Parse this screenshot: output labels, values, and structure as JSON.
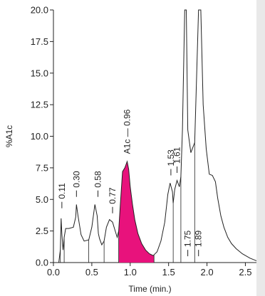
{
  "chart_data": {
    "type": "line",
    "title": "",
    "xlabel": "Time (min.)",
    "ylabel": "%A1c",
    "xlim": [
      0.0,
      2.7
    ],
    "ylim": [
      0.0,
      20.0
    ],
    "x_ticks": [
      "0.0",
      "0.5",
      "1.0",
      "1.5",
      "2.0",
      "2.5"
    ],
    "x_tick_values": [
      0.0,
      0.5,
      1.0,
      1.5,
      2.0,
      2.5
    ],
    "y_ticks": [
      "0.0",
      "2.5",
      "5.0",
      "7.5",
      "10.0",
      "12.5",
      "15.0",
      "17.5",
      "20.0"
    ],
    "y_tick_values": [
      0.0,
      2.5,
      5.0,
      7.5,
      10.0,
      12.5,
      15.0,
      17.5,
      20.0
    ],
    "highlight_color": "#e8127c",
    "highlighted_peak": {
      "label": "A1c",
      "range": [
        0.85,
        1.31
      ]
    },
    "series": [
      {
        "x": [
          0.07,
          0.09,
          0.1,
          0.11,
          0.125,
          0.14,
          0.16,
          0.2,
          0.26,
          0.29,
          0.3,
          0.32,
          0.36,
          0.4,
          0.46,
          0.5,
          0.54,
          0.57,
          0.585,
          0.6,
          0.63,
          0.66,
          0.69,
          0.73,
          0.77,
          0.8,
          0.83,
          0.85,
          0.87,
          0.9,
          0.93,
          0.96,
          0.98,
          1.0,
          1.03,
          1.06,
          1.1,
          1.15,
          1.2,
          1.25,
          1.3,
          1.35,
          1.4,
          1.45,
          1.49,
          1.52,
          1.55,
          1.56,
          1.58,
          1.61,
          1.64,
          1.66,
          1.68,
          1.71,
          1.73,
          1.75,
          1.79,
          1.84,
          1.89,
          1.92,
          1.95,
          1.99,
          2.03,
          2.07,
          2.11,
          2.14,
          2.18,
          2.22,
          2.27,
          2.32,
          2.38,
          2.46,
          2.56,
          2.66,
          2.7
        ],
        "y": [
          0.0,
          1.0,
          3.5,
          2.2,
          1.0,
          2.0,
          2.7,
          2.7,
          2.8,
          3.6,
          4.6,
          3.7,
          2.2,
          1.7,
          1.8,
          2.8,
          4.6,
          3.7,
          2.3,
          1.9,
          1.4,
          1.7,
          2.8,
          3.4,
          3.2,
          2.6,
          2.0,
          2.5,
          4.5,
          7.2,
          7.5,
          8.0,
          7.4,
          6.0,
          4.6,
          3.4,
          2.3,
          1.5,
          1.0,
          0.7,
          0.55,
          0.85,
          1.7,
          3.2,
          5.4,
          6.3,
          5.6,
          4.7,
          5.8,
          6.5,
          6.0,
          6.8,
          10.5,
          20.5,
          20.5,
          10.5,
          8.7,
          9.5,
          20.5,
          20.5,
          12.5,
          9.0,
          7.0,
          6.9,
          6.4,
          5.1,
          3.7,
          2.8,
          2.0,
          1.5,
          1.1,
          0.7,
          0.35,
          0.1,
          0.05
        ]
      }
    ],
    "drop_lines": [
      0.09,
      0.14,
      0.46,
      0.66,
      0.85,
      1.31,
      1.56,
      1.66,
      1.84
    ],
    "peaks": [
      {
        "label": "0.11",
        "x": 0.11,
        "y": 4.3
      },
      {
        "label": "0.30",
        "x": 0.3,
        "y": 5.2
      },
      {
        "label": "0.58",
        "x": 0.58,
        "y": 5.2
      },
      {
        "label": "0.77",
        "x": 0.77,
        "y": 3.9
      },
      {
        "label": "A1c — 0.96",
        "x": 0.96,
        "y": 8.6
      },
      {
        "label": "1.53",
        "x": 1.53,
        "y": 6.9
      },
      {
        "label": "1.61",
        "x": 1.61,
        "y": 7.1
      },
      {
        "label": "1.75",
        "x": 1.75,
        "y": 0.5
      },
      {
        "label": "1.89",
        "x": 1.89,
        "y": 0.5
      }
    ]
  }
}
